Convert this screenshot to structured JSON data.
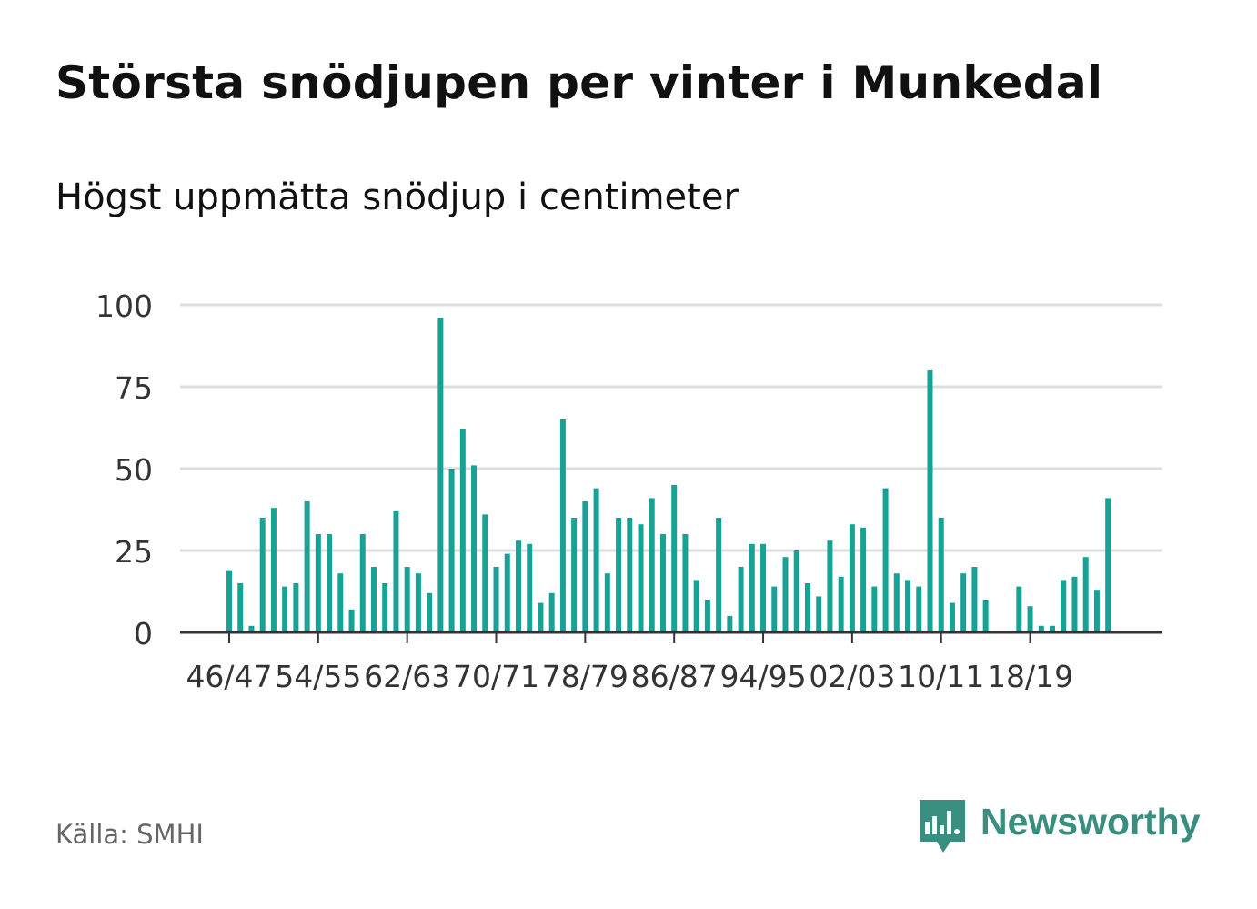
{
  "title": "Största snödjupen per vinter i Munkedal",
  "subtitle": "Högst uppmätta snödjup i centimeter",
  "source": "Källa: SMHI",
  "brand": "Newsworthy",
  "colors": {
    "bar": "#16a395",
    "grid": "#dddddd",
    "axis": "#333333",
    "brand": "#3a8e7f"
  },
  "chart_data": {
    "type": "bar",
    "ylim": [
      0,
      100
    ],
    "yticks": [
      0,
      25,
      50,
      75,
      100
    ],
    "grid": true,
    "xtick_labels": [
      "46/47",
      "54/55",
      "62/63",
      "70/71",
      "78/79",
      "86/87",
      "94/95",
      "02/03",
      "10/11",
      "18/19"
    ],
    "xtick_every": 8,
    "categories": [
      "46/47",
      "47/48",
      "48/49",
      "49/50",
      "50/51",
      "51/52",
      "52/53",
      "53/54",
      "54/55",
      "55/56",
      "56/57",
      "57/58",
      "58/59",
      "59/60",
      "60/61",
      "61/62",
      "62/63",
      "63/64",
      "64/65",
      "65/66",
      "66/67",
      "67/68",
      "68/69",
      "69/70",
      "70/71",
      "71/72",
      "72/73",
      "73/74",
      "74/75",
      "75/76",
      "76/77",
      "77/78",
      "78/79",
      "79/80",
      "80/81",
      "81/82",
      "82/83",
      "83/84",
      "84/85",
      "85/86",
      "86/87",
      "87/88",
      "88/89",
      "89/90",
      "90/91",
      "91/92",
      "92/93",
      "93/94",
      "94/95",
      "95/96",
      "96/97",
      "97/98",
      "98/99",
      "99/00",
      "00/01",
      "01/02",
      "02/03",
      "03/04",
      "04/05",
      "05/06",
      "06/07",
      "07/08",
      "08/09",
      "09/10",
      "10/11",
      "11/12",
      "12/13",
      "13/14",
      "14/15",
      "15/16",
      "16/17",
      "17/18",
      "18/19",
      "19/20",
      "20/21",
      "21/22",
      "22/23",
      "23/24",
      "24/25",
      "25/26",
      "26/27",
      "27/28"
    ],
    "values": [
      19,
      15,
      2,
      35,
      38,
      14,
      15,
      40,
      30,
      30,
      18,
      7,
      30,
      20,
      15,
      37,
      20,
      18,
      12,
      96,
      50,
      62,
      51,
      36,
      20,
      24,
      28,
      27,
      9,
      12,
      65,
      35,
      40,
      44,
      18,
      35,
      35,
      33,
      41,
      30,
      45,
      30,
      16,
      10,
      35,
      5,
      20,
      27,
      27,
      14,
      23,
      25,
      15,
      11,
      28,
      17,
      33,
      32,
      14,
      44,
      18,
      16,
      14,
      80,
      35,
      9,
      18,
      20,
      10,
      null,
      null,
      14,
      8,
      2,
      2,
      16,
      17,
      23,
      13,
      41,
      null,
      null
    ]
  }
}
